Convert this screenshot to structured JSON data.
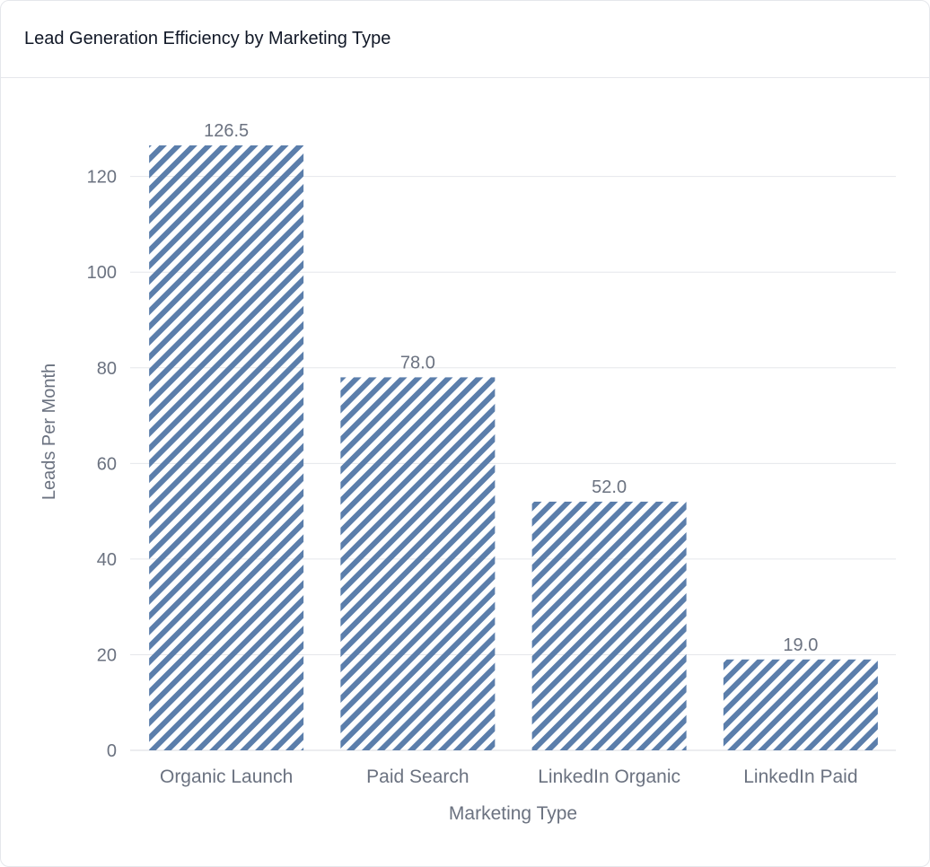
{
  "header": {
    "title": "Lead Generation Efficiency by Marketing Type"
  },
  "colors": {
    "bar": "#5b7eab",
    "grid": "#e5e7eb",
    "tick_text": "#6b7280",
    "axis_title": "#6b7280",
    "bar_label": "#6b7280"
  },
  "chart_data": {
    "type": "bar",
    "title": "Lead Generation Efficiency by Marketing Type",
    "xlabel": "Marketing Type",
    "ylabel": "Leads Per Month",
    "categories": [
      "Organic Launch",
      "Paid Search",
      "LinkedIn Organic",
      "LinkedIn Paid"
    ],
    "values": [
      126.5,
      78.0,
      52.0,
      19.0
    ],
    "value_labels": [
      "126.5",
      "78.0",
      "52.0",
      "19.0"
    ],
    "ylim": [
      0,
      126.5
    ],
    "yticks": [
      0,
      20,
      40,
      60,
      80,
      100,
      120
    ],
    "grid": true,
    "bar_fill": "diagonal-stripes",
    "legend": "none"
  }
}
